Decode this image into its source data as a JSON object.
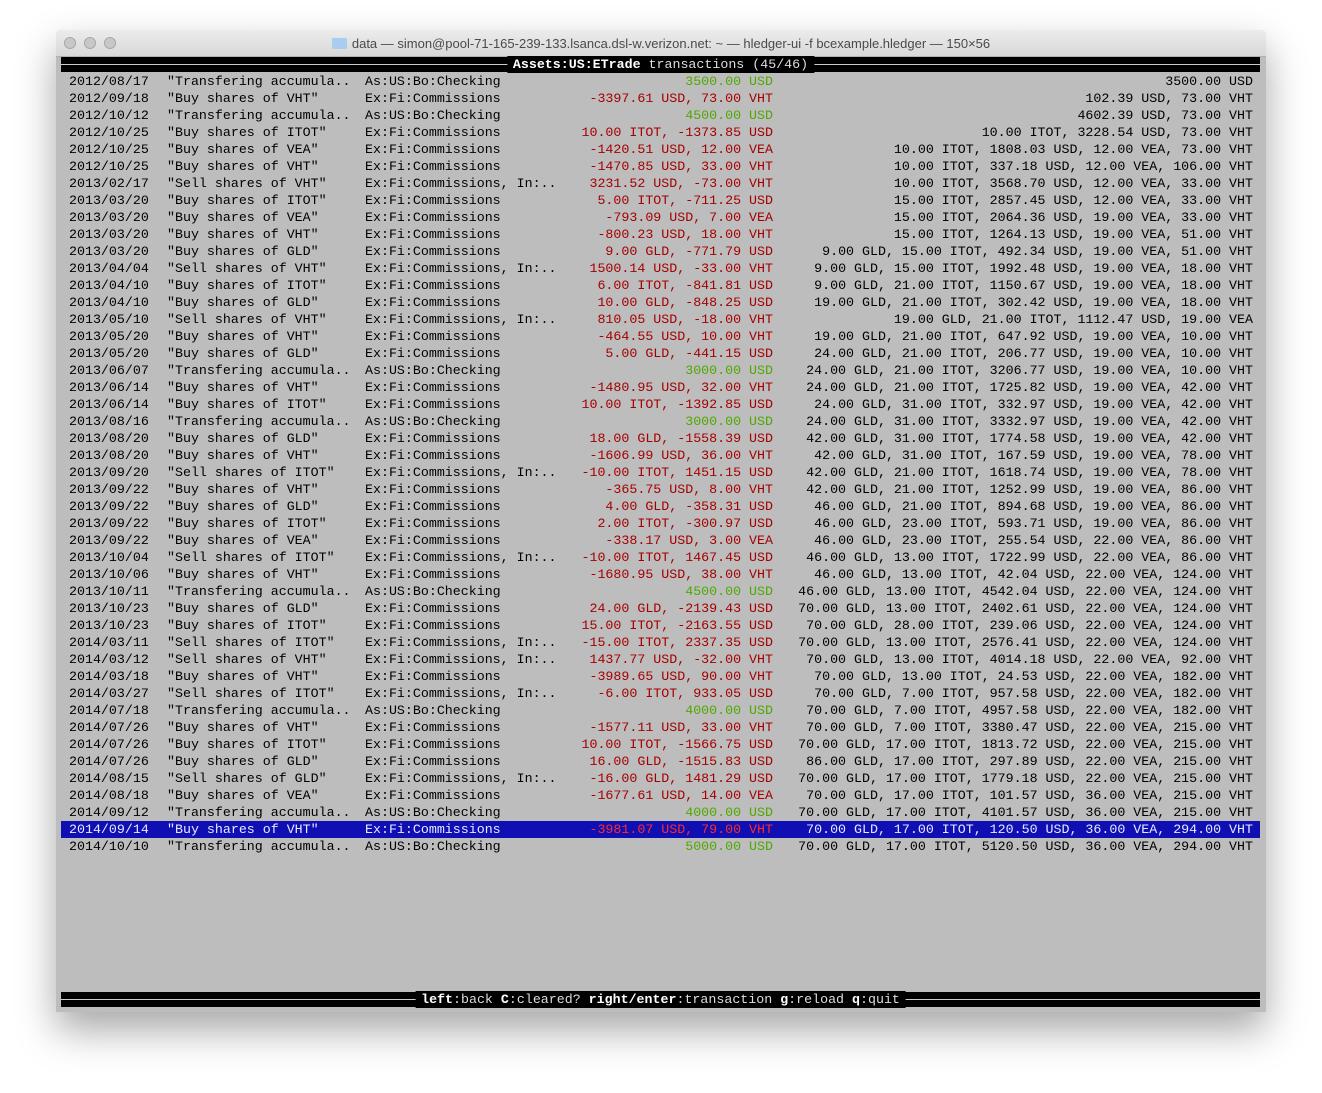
{
  "window": {
    "title": "data — simon@pool-71-165-239-133.lsanca.dsl-w.verizon.net: ~ — hledger-ui -f bcexample.hledger — 150×56"
  },
  "header": {
    "account": "Assets:US:ETrade",
    "suffix": " transactions (45/46)"
  },
  "footer": {
    "keys": [
      [
        "left",
        ":back "
      ],
      [
        "C",
        ":cleared? "
      ],
      [
        "right/enter",
        ":transaction "
      ],
      [
        "g",
        ":reload "
      ],
      [
        "q",
        ":quit"
      ]
    ]
  },
  "colors": {
    "positive": "#4fa800",
    "negative": "#a50000",
    "selected_bg": "#0f0fb4",
    "background": "#bdbdbd"
  },
  "selected_index": 44,
  "columns": [
    "date",
    "description",
    "account",
    "amount",
    "balance"
  ],
  "rows": [
    [
      "2012/08/17",
      "\"Transfering accumula..",
      "As:US:Bo:Checking",
      "3500.00 USD",
      "3500.00 USD",
      "pos"
    ],
    [
      "2012/09/18",
      "\"Buy shares of VHT\"",
      "Ex:Fi:Commissions",
      "-3397.61 USD, 73.00 VHT",
      "102.39 USD, 73.00 VHT",
      "neg"
    ],
    [
      "2012/10/12",
      "\"Transfering accumula..",
      "As:US:Bo:Checking",
      "4500.00 USD",
      "4602.39 USD, 73.00 VHT",
      "pos"
    ],
    [
      "2012/10/25",
      "\"Buy shares of ITOT\"",
      "Ex:Fi:Commissions",
      "10.00 ITOT, -1373.85 USD",
      "10.00 ITOT, 3228.54 USD, 73.00 VHT",
      "neg"
    ],
    [
      "2012/10/25",
      "\"Buy shares of VEA\"",
      "Ex:Fi:Commissions",
      "-1420.51 USD, 12.00 VEA",
      "10.00 ITOT, 1808.03 USD, 12.00 VEA, 73.00 VHT",
      "neg"
    ],
    [
      "2012/10/25",
      "\"Buy shares of VHT\"",
      "Ex:Fi:Commissions",
      "-1470.85 USD, 33.00 VHT",
      "10.00 ITOT, 337.18 USD, 12.00 VEA, 106.00 VHT",
      "neg"
    ],
    [
      "2013/02/17",
      "\"Sell shares of VHT\"",
      "Ex:Fi:Commissions, In:..",
      "3231.52 USD, -73.00 VHT",
      "10.00 ITOT, 3568.70 USD, 12.00 VEA, 33.00 VHT",
      "neg"
    ],
    [
      "2013/03/20",
      "\"Buy shares of ITOT\"",
      "Ex:Fi:Commissions",
      "5.00 ITOT, -711.25 USD",
      "15.00 ITOT, 2857.45 USD, 12.00 VEA, 33.00 VHT",
      "neg"
    ],
    [
      "2013/03/20",
      "\"Buy shares of VEA\"",
      "Ex:Fi:Commissions",
      "-793.09 USD, 7.00 VEA",
      "15.00 ITOT, 2064.36 USD, 19.00 VEA, 33.00 VHT",
      "neg"
    ],
    [
      "2013/03/20",
      "\"Buy shares of VHT\"",
      "Ex:Fi:Commissions",
      "-800.23 USD, 18.00 VHT",
      "15.00 ITOT, 1264.13 USD, 19.00 VEA, 51.00 VHT",
      "neg"
    ],
    [
      "2013/03/20",
      "\"Buy shares of GLD\"",
      "Ex:Fi:Commissions",
      "9.00 GLD, -771.79 USD",
      "9.00 GLD, 15.00 ITOT, 492.34 USD, 19.00 VEA, 51.00 VHT",
      "neg"
    ],
    [
      "2013/04/04",
      "\"Sell shares of VHT\"",
      "Ex:Fi:Commissions, In:..",
      "1500.14 USD, -33.00 VHT",
      "9.00 GLD, 15.00 ITOT, 1992.48 USD, 19.00 VEA, 18.00 VHT",
      "neg"
    ],
    [
      "2013/04/10",
      "\"Buy shares of ITOT\"",
      "Ex:Fi:Commissions",
      "6.00 ITOT, -841.81 USD",
      "9.00 GLD, 21.00 ITOT, 1150.67 USD, 19.00 VEA, 18.00 VHT",
      "neg"
    ],
    [
      "2013/04/10",
      "\"Buy shares of GLD\"",
      "Ex:Fi:Commissions",
      "10.00 GLD, -848.25 USD",
      "19.00 GLD, 21.00 ITOT, 302.42 USD, 19.00 VEA, 18.00 VHT",
      "neg"
    ],
    [
      "2013/05/10",
      "\"Sell shares of VHT\"",
      "Ex:Fi:Commissions, In:..",
      "810.05 USD, -18.00 VHT",
      "19.00 GLD, 21.00 ITOT, 1112.47 USD, 19.00 VEA",
      "neg"
    ],
    [
      "2013/05/20",
      "\"Buy shares of VHT\"",
      "Ex:Fi:Commissions",
      "-464.55 USD, 10.00 VHT",
      "19.00 GLD, 21.00 ITOT, 647.92 USD, 19.00 VEA, 10.00 VHT",
      "neg"
    ],
    [
      "2013/05/20",
      "\"Buy shares of GLD\"",
      "Ex:Fi:Commissions",
      "5.00 GLD, -441.15 USD",
      "24.00 GLD, 21.00 ITOT, 206.77 USD, 19.00 VEA, 10.00 VHT",
      "neg"
    ],
    [
      "2013/06/07",
      "\"Transfering accumula..",
      "As:US:Bo:Checking",
      "3000.00 USD",
      "24.00 GLD, 21.00 ITOT, 3206.77 USD, 19.00 VEA, 10.00 VHT",
      "pos"
    ],
    [
      "2013/06/14",
      "\"Buy shares of VHT\"",
      "Ex:Fi:Commissions",
      "-1480.95 USD, 32.00 VHT",
      "24.00 GLD, 21.00 ITOT, 1725.82 USD, 19.00 VEA, 42.00 VHT",
      "neg"
    ],
    [
      "2013/06/14",
      "\"Buy shares of ITOT\"",
      "Ex:Fi:Commissions",
      "10.00 ITOT, -1392.85 USD",
      "24.00 GLD, 31.00 ITOT, 332.97 USD, 19.00 VEA, 42.00 VHT",
      "neg"
    ],
    [
      "2013/08/16",
      "\"Transfering accumula..",
      "As:US:Bo:Checking",
      "3000.00 USD",
      "24.00 GLD, 31.00 ITOT, 3332.97 USD, 19.00 VEA, 42.00 VHT",
      "pos"
    ],
    [
      "2013/08/20",
      "\"Buy shares of GLD\"",
      "Ex:Fi:Commissions",
      "18.00 GLD, -1558.39 USD",
      "42.00 GLD, 31.00 ITOT, 1774.58 USD, 19.00 VEA, 42.00 VHT",
      "neg"
    ],
    [
      "2013/08/20",
      "\"Buy shares of VHT\"",
      "Ex:Fi:Commissions",
      "-1606.99 USD, 36.00 VHT",
      "42.00 GLD, 31.00 ITOT, 167.59 USD, 19.00 VEA, 78.00 VHT",
      "neg"
    ],
    [
      "2013/09/20",
      "\"Sell shares of ITOT\"",
      "Ex:Fi:Commissions, In:..",
      "-10.00 ITOT, 1451.15 USD",
      "42.00 GLD, 21.00 ITOT, 1618.74 USD, 19.00 VEA, 78.00 VHT",
      "neg"
    ],
    [
      "2013/09/22",
      "\"Buy shares of VHT\"",
      "Ex:Fi:Commissions",
      "-365.75 USD, 8.00 VHT",
      "42.00 GLD, 21.00 ITOT, 1252.99 USD, 19.00 VEA, 86.00 VHT",
      "neg"
    ],
    [
      "2013/09/22",
      "\"Buy shares of GLD\"",
      "Ex:Fi:Commissions",
      "4.00 GLD, -358.31 USD",
      "46.00 GLD, 21.00 ITOT, 894.68 USD, 19.00 VEA, 86.00 VHT",
      "neg"
    ],
    [
      "2013/09/22",
      "\"Buy shares of ITOT\"",
      "Ex:Fi:Commissions",
      "2.00 ITOT, -300.97 USD",
      "46.00 GLD, 23.00 ITOT, 593.71 USD, 19.00 VEA, 86.00 VHT",
      "neg"
    ],
    [
      "2013/09/22",
      "\"Buy shares of VEA\"",
      "Ex:Fi:Commissions",
      "-338.17 USD, 3.00 VEA",
      "46.00 GLD, 23.00 ITOT, 255.54 USD, 22.00 VEA, 86.00 VHT",
      "neg"
    ],
    [
      "2013/10/04",
      "\"Sell shares of ITOT\"",
      "Ex:Fi:Commissions, In:..",
      "-10.00 ITOT, 1467.45 USD",
      "46.00 GLD, 13.00 ITOT, 1722.99 USD, 22.00 VEA, 86.00 VHT",
      "neg"
    ],
    [
      "2013/10/06",
      "\"Buy shares of VHT\"",
      "Ex:Fi:Commissions",
      "-1680.95 USD, 38.00 VHT",
      "46.00 GLD, 13.00 ITOT, 42.04 USD, 22.00 VEA, 124.00 VHT",
      "neg"
    ],
    [
      "2013/10/11",
      "\"Transfering accumula..",
      "As:US:Bo:Checking",
      "4500.00 USD",
      "46.00 GLD, 13.00 ITOT, 4542.04 USD, 22.00 VEA, 124.00 VHT",
      "pos"
    ],
    [
      "2013/10/23",
      "\"Buy shares of GLD\"",
      "Ex:Fi:Commissions",
      "24.00 GLD, -2139.43 USD",
      "70.00 GLD, 13.00 ITOT, 2402.61 USD, 22.00 VEA, 124.00 VHT",
      "neg"
    ],
    [
      "2013/10/23",
      "\"Buy shares of ITOT\"",
      "Ex:Fi:Commissions",
      "15.00 ITOT, -2163.55 USD",
      "70.00 GLD, 28.00 ITOT, 239.06 USD, 22.00 VEA, 124.00 VHT",
      "neg"
    ],
    [
      "2014/03/11",
      "\"Sell shares of ITOT\"",
      "Ex:Fi:Commissions, In:..",
      "-15.00 ITOT, 2337.35 USD",
      "70.00 GLD, 13.00 ITOT, 2576.41 USD, 22.00 VEA, 124.00 VHT",
      "neg"
    ],
    [
      "2014/03/12",
      "\"Sell shares of VHT\"",
      "Ex:Fi:Commissions, In:..",
      "1437.77 USD, -32.00 VHT",
      "70.00 GLD, 13.00 ITOT, 4014.18 USD, 22.00 VEA, 92.00 VHT",
      "neg"
    ],
    [
      "2014/03/18",
      "\"Buy shares of VHT\"",
      "Ex:Fi:Commissions",
      "-3989.65 USD, 90.00 VHT",
      "70.00 GLD, 13.00 ITOT, 24.53 USD, 22.00 VEA, 182.00 VHT",
      "neg"
    ],
    [
      "2014/03/27",
      "\"Sell shares of ITOT\"",
      "Ex:Fi:Commissions, In:..",
      "-6.00 ITOT, 933.05 USD",
      "70.00 GLD, 7.00 ITOT, 957.58 USD, 22.00 VEA, 182.00 VHT",
      "neg"
    ],
    [
      "2014/07/18",
      "\"Transfering accumula..",
      "As:US:Bo:Checking",
      "4000.00 USD",
      "70.00 GLD, 7.00 ITOT, 4957.58 USD, 22.00 VEA, 182.00 VHT",
      "pos"
    ],
    [
      "2014/07/26",
      "\"Buy shares of VHT\"",
      "Ex:Fi:Commissions",
      "-1577.11 USD, 33.00 VHT",
      "70.00 GLD, 7.00 ITOT, 3380.47 USD, 22.00 VEA, 215.00 VHT",
      "neg"
    ],
    [
      "2014/07/26",
      "\"Buy shares of ITOT\"",
      "Ex:Fi:Commissions",
      "10.00 ITOT, -1566.75 USD",
      "70.00 GLD, 17.00 ITOT, 1813.72 USD, 22.00 VEA, 215.00 VHT",
      "neg"
    ],
    [
      "2014/07/26",
      "\"Buy shares of GLD\"",
      "Ex:Fi:Commissions",
      "16.00 GLD, -1515.83 USD",
      "86.00 GLD, 17.00 ITOT, 297.89 USD, 22.00 VEA, 215.00 VHT",
      "neg"
    ],
    [
      "2014/08/15",
      "\"Sell shares of GLD\"",
      "Ex:Fi:Commissions, In:..",
      "-16.00 GLD, 1481.29 USD",
      "70.00 GLD, 17.00 ITOT, 1779.18 USD, 22.00 VEA, 215.00 VHT",
      "neg"
    ],
    [
      "2014/08/18",
      "\"Buy shares of VEA\"",
      "Ex:Fi:Commissions",
      "-1677.61 USD, 14.00 VEA",
      "70.00 GLD, 17.00 ITOT, 101.57 USD, 36.00 VEA, 215.00 VHT",
      "neg"
    ],
    [
      "2014/09/12",
      "\"Transfering accumula..",
      "As:US:Bo:Checking",
      "4000.00 USD",
      "70.00 GLD, 17.00 ITOT, 4101.57 USD, 36.00 VEA, 215.00 VHT",
      "pos"
    ],
    [
      "2014/09/14",
      "\"Buy shares of VHT\"",
      "Ex:Fi:Commissions",
      "-3981.07 USD, 79.00 VHT",
      "70.00 GLD, 17.00 ITOT, 120.50 USD, 36.00 VEA, 294.00 VHT",
      "neg"
    ],
    [
      "2014/10/10",
      "\"Transfering accumula..",
      "As:US:Bo:Checking",
      "5000.00 USD",
      "70.00 GLD, 17.00 ITOT, 5120.50 USD, 36.00 VEA, 294.00 VHT",
      "pos"
    ]
  ]
}
